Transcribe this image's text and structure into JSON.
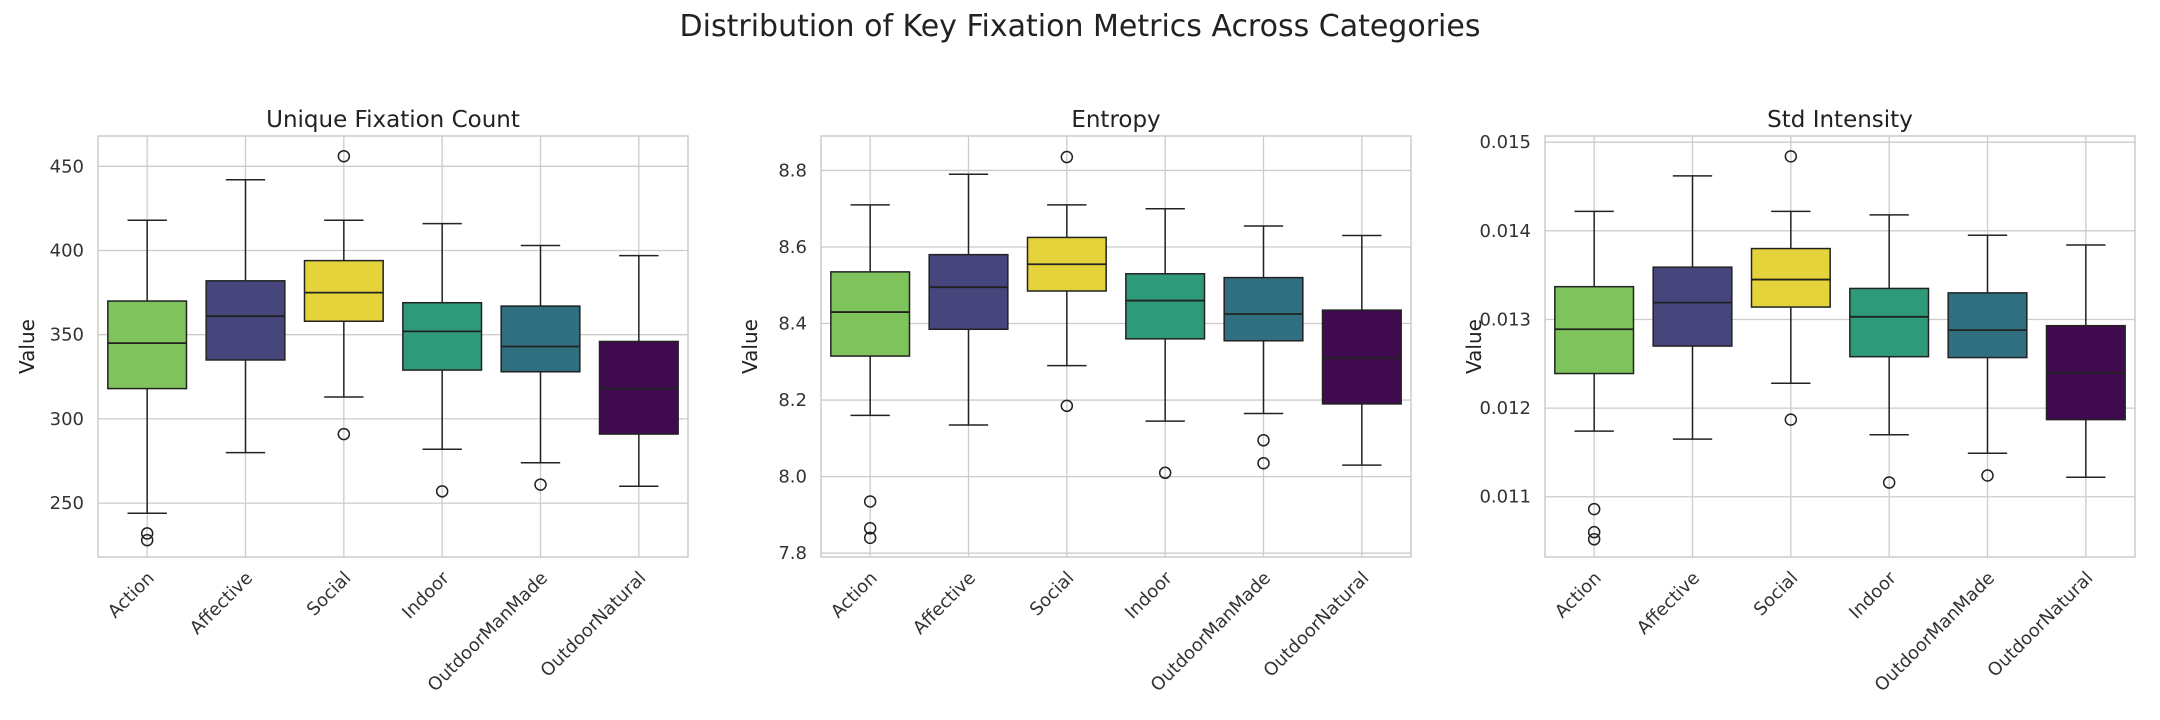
{
  "figure": {
    "title": "Distribution of Key Fixation Metrics Across Categories"
  },
  "chart_data": [
    {
      "type": "box",
      "title": "Unique Fixation Count",
      "xlabel": "",
      "ylabel": "Value",
      "ylim": [
        218,
        468
      ],
      "yticks": [
        250,
        300,
        350,
        400,
        450
      ],
      "grid": true,
      "categories": [
        "Action",
        "Affective",
        "Social",
        "Indoor",
        "OutdoorManMade",
        "OutdoorNatural"
      ],
      "colors": [
        "#7ec35b",
        "#46467c",
        "#e4d33a",
        "#2f9a7a",
        "#306f80",
        "#3f0a4e"
      ],
      "boxes": [
        {
          "q1": 318,
          "median": 345,
          "q3": 370,
          "whisker_low": 244,
          "whisker_high": 418,
          "outliers": [
            228,
            232
          ]
        },
        {
          "q1": 335,
          "median": 361,
          "q3": 382,
          "whisker_low": 280,
          "whisker_high": 442,
          "outliers": []
        },
        {
          "q1": 358,
          "median": 375,
          "q3": 394,
          "whisker_low": 313,
          "whisker_high": 418,
          "outliers": [
            291,
            456
          ]
        },
        {
          "q1": 329,
          "median": 352,
          "q3": 369,
          "whisker_low": 282,
          "whisker_high": 416,
          "outliers": [
            257
          ]
        },
        {
          "q1": 328,
          "median": 343,
          "q3": 367,
          "whisker_low": 274,
          "whisker_high": 403,
          "outliers": [
            261
          ]
        },
        {
          "q1": 291,
          "median": 318,
          "q3": 346,
          "whisker_low": 260,
          "whisker_high": 397,
          "outliers": []
        }
      ]
    },
    {
      "type": "box",
      "title": "Entropy",
      "xlabel": "",
      "ylabel": "Value",
      "ylim": [
        7.79,
        8.89
      ],
      "yticks": [
        7.8,
        8.0,
        8.2,
        8.4,
        8.6,
        8.8
      ],
      "grid": true,
      "categories": [
        "Action",
        "Affective",
        "Social",
        "Indoor",
        "OutdoorManMade",
        "OutdoorNatural"
      ],
      "colors": [
        "#7ec35b",
        "#46467c",
        "#e4d33a",
        "#2f9a7a",
        "#306f80",
        "#3f0a4e"
      ],
      "boxes": [
        {
          "q1": 8.315,
          "median": 8.43,
          "q3": 8.535,
          "whisker_low": 8.16,
          "whisker_high": 8.71,
          "outliers": [
            7.84,
            7.865,
            7.935
          ]
        },
        {
          "q1": 8.385,
          "median": 8.495,
          "q3": 8.58,
          "whisker_low": 8.135,
          "whisker_high": 8.79,
          "outliers": []
        },
        {
          "q1": 8.485,
          "median": 8.555,
          "q3": 8.625,
          "whisker_low": 8.29,
          "whisker_high": 8.71,
          "outliers": [
            8.185,
            8.835
          ]
        },
        {
          "q1": 8.36,
          "median": 8.46,
          "q3": 8.53,
          "whisker_low": 8.145,
          "whisker_high": 8.7,
          "outliers": [
            8.01
          ]
        },
        {
          "q1": 8.355,
          "median": 8.425,
          "q3": 8.52,
          "whisker_low": 8.165,
          "whisker_high": 8.655,
          "outliers": [
            8.035,
            8.095
          ]
        },
        {
          "q1": 8.19,
          "median": 8.31,
          "q3": 8.435,
          "whisker_low": 8.03,
          "whisker_high": 8.63,
          "outliers": []
        }
      ]
    },
    {
      "type": "box",
      "title": "Std Intensity",
      "xlabel": "",
      "ylabel": "Value",
      "ylim": [
        0.01032,
        0.01507
      ],
      "yticks": [
        0.011,
        0.012,
        0.013,
        0.014,
        0.015
      ],
      "grid": true,
      "categories": [
        "Action",
        "Affective",
        "Social",
        "Indoor",
        "OutdoorManMade",
        "OutdoorNatural"
      ],
      "colors": [
        "#7ec35b",
        "#46467c",
        "#e4d33a",
        "#2f9a7a",
        "#306f80",
        "#3f0a4e"
      ],
      "boxes": [
        {
          "q1": 0.01239,
          "median": 0.01289,
          "q3": 0.01337,
          "whisker_low": 0.01174,
          "whisker_high": 0.01422,
          "outliers": [
            0.01052,
            0.0106,
            0.01086
          ]
        },
        {
          "q1": 0.0127,
          "median": 0.01319,
          "q3": 0.01359,
          "whisker_low": 0.01165,
          "whisker_high": 0.01462,
          "outliers": []
        },
        {
          "q1": 0.01314,
          "median": 0.01345,
          "q3": 0.0138,
          "whisker_low": 0.01228,
          "whisker_high": 0.01422,
          "outliers": [
            0.01187,
            0.01484
          ]
        },
        {
          "q1": 0.01258,
          "median": 0.01303,
          "q3": 0.01335,
          "whisker_low": 0.0117,
          "whisker_high": 0.01418,
          "outliers": [
            0.01116
          ]
        },
        {
          "q1": 0.01257,
          "median": 0.01288,
          "q3": 0.0133,
          "whisker_low": 0.01149,
          "whisker_high": 0.01395,
          "outliers": [
            0.01124
          ]
        },
        {
          "q1": 0.01187,
          "median": 0.0124,
          "q3": 0.01293,
          "whisker_low": 0.01122,
          "whisker_high": 0.01384,
          "outliers": []
        }
      ]
    }
  ]
}
